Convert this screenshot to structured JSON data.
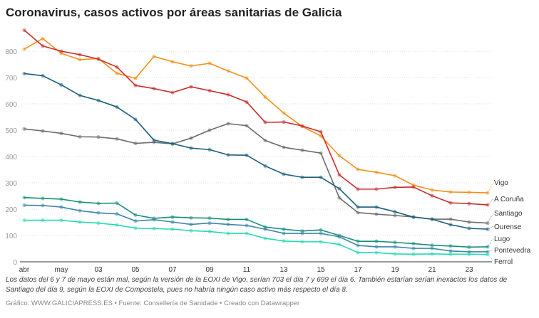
{
  "title": "Coronavirus, casos activos por áreas sanitarias de Galicia",
  "note": "Los datos del 6 y 7 de mayo están mal, según la versión de la EOXI de Vigo, serían 703 el día 7 y 699 el día 6. También estarían serían inexactos los datos de Santiago del día 9, según la EOXI de Compostela, pues no habría ningún caso activo más respecto el día 8.",
  "credit": "Gráfico: WWW.GALICIAPRESS.ES • Fuente: Consellería de Sanidade • Creado con Datawrapper",
  "chart_data": {
    "type": "line",
    "title": "Coronavirus, casos activos por áreas sanitarias de Galicia",
    "x": [
      "2020-04-29",
      "2020-04-30",
      "2020-05-01",
      "2020-05-02",
      "2020-05-03",
      "2020-05-04",
      "2020-05-05",
      "2020-05-06",
      "2020-05-07",
      "2020-05-08",
      "2020-05-09",
      "2020-05-10",
      "2020-05-11",
      "2020-05-12",
      "2020-05-13",
      "2020-05-14",
      "2020-05-15",
      "2020-05-16",
      "2020-05-17",
      "2020-05-18",
      "2020-05-19",
      "2020-05-20",
      "2020-05-21",
      "2020-05-22",
      "2020-05-23",
      "2020-05-24"
    ],
    "x_tick_labels": [
      "abr",
      "may",
      "03",
      "05",
      "07",
      "09",
      "11",
      "13",
      "15",
      "17",
      "19",
      "21",
      "23"
    ],
    "x_tick_dates": [
      "2020-04-29",
      "2020-05-01",
      "2020-05-03",
      "2020-05-05",
      "2020-05-07",
      "2020-05-09",
      "2020-05-11",
      "2020-05-13",
      "2020-05-15",
      "2020-05-17",
      "2020-05-19",
      "2020-05-21",
      "2020-05-23"
    ],
    "y_ticks": [
      0,
      100,
      200,
      300,
      400,
      500,
      600,
      700,
      800
    ],
    "ylim": [
      0,
      890
    ],
    "grid": true,
    "legend": "direct labels at right end of lines",
    "series": [
      {
        "name": "Vigo",
        "color": "#f39019",
        "values": [
          808,
          848,
          792,
          768,
          772,
          716,
          697,
          780,
          760,
          744,
          754,
          725,
          698,
          626,
          565,
          514,
          478,
          403,
          351,
          340,
          327,
          291,
          273,
          265,
          264,
          262
        ]
      },
      {
        "name": "A Coruña",
        "color": "#cc2d2d",
        "values": [
          880,
          820,
          800,
          787,
          770,
          740,
          670,
          658,
          643,
          665,
          650,
          635,
          607,
          530,
          531,
          516,
          494,
          330,
          276,
          276,
          283,
          284,
          251,
          224,
          221,
          216
        ]
      },
      {
        "name": "Santiago",
        "color": "#6a6a6a",
        "values": [
          505,
          497,
          488,
          475,
          474,
          467,
          450,
          454,
          448,
          470,
          500,
          525,
          517,
          461,
          435,
          424,
          413,
          243,
          187,
          181,
          176,
          170,
          162,
          162,
          151,
          147
        ]
      },
      {
        "name": "Ourense",
        "color": "#1b5f7e",
        "values": [
          715,
          707,
          672,
          632,
          613,
          588,
          541,
          462,
          449,
          432,
          426,
          406,
          405,
          364,
          333,
          321,
          321,
          278,
          208,
          208,
          190,
          170,
          162,
          141,
          127,
          124
        ]
      },
      {
        "name": "Lugo",
        "color": "#168f78",
        "values": [
          244,
          241,
          238,
          227,
          222,
          223,
          178,
          165,
          170,
          167,
          166,
          161,
          161,
          132,
          124,
          117,
          121,
          100,
          78,
          78,
          74,
          69,
          63,
          60,
          56,
          57
        ]
      },
      {
        "name": "Pontevedra",
        "color": "#3a86ac",
        "values": [
          215,
          214,
          208,
          194,
          186,
          182,
          155,
          160,
          151,
          142,
          147,
          142,
          138,
          124,
          108,
          108,
          108,
          95,
          62,
          57,
          57,
          51,
          51,
          41,
          38,
          38
        ]
      },
      {
        "name": "Ferrol",
        "color": "#22dbb2",
        "values": [
          158,
          158,
          158,
          151,
          147,
          140,
          128,
          126,
          124,
          118,
          115,
          108,
          108,
          89,
          79,
          76,
          76,
          66,
          35,
          35,
          30,
          29,
          30,
          29,
          29,
          28
        ]
      }
    ]
  }
}
